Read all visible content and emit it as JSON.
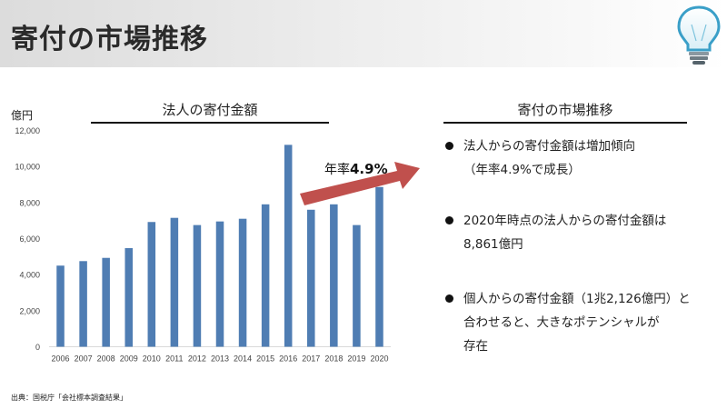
{
  "slide": {
    "title": "寄付の市場推移",
    "source": "出典：国税庁「会社標本調査結果」"
  },
  "chart_data": {
    "type": "bar",
    "title": "法人の寄付金額",
    "ylabel": "億円",
    "categories": [
      "2006",
      "2007",
      "2008",
      "2009",
      "2010",
      "2011",
      "2012",
      "2013",
      "2014",
      "2015",
      "2016",
      "2017",
      "2018",
      "2019",
      "2020"
    ],
    "values": [
      4500,
      4750,
      4930,
      5470,
      6920,
      7150,
      6750,
      6950,
      7100,
      7900,
      11200,
      7600,
      7900,
      6750,
      8861
    ],
    "ylim": [
      0,
      12000
    ],
    "yticks": [
      0,
      2000,
      4000,
      6000,
      8000,
      10000,
      12000
    ],
    "ytick_labels": [
      "0",
      "2,000",
      "4,000",
      "6,000",
      "8,000",
      "10,000",
      "12,000"
    ],
    "bar_color": "#4F7DB3",
    "grid": false,
    "annotation": {
      "prefix": "年率",
      "value": "4.9%",
      "arrow_color": "#C0504D"
    }
  },
  "panel": {
    "title": "寄付の市場推移",
    "bullets": [
      {
        "line1": "法人からの寄付金額は増加傾向",
        "line2": "（年率4.9%で成長）"
      },
      {
        "line1": "2020年時点の法人からの寄付金額は",
        "line2": "8,861億円"
      },
      {
        "line1": "個人からの寄付金額（1兆2,126億円）と",
        "line2": "合わせると、大きなポテンシャルが",
        "line3": "存在"
      }
    ]
  },
  "icons": {
    "logo": "lightbulb-icon",
    "accent": "#3A9FC8"
  }
}
